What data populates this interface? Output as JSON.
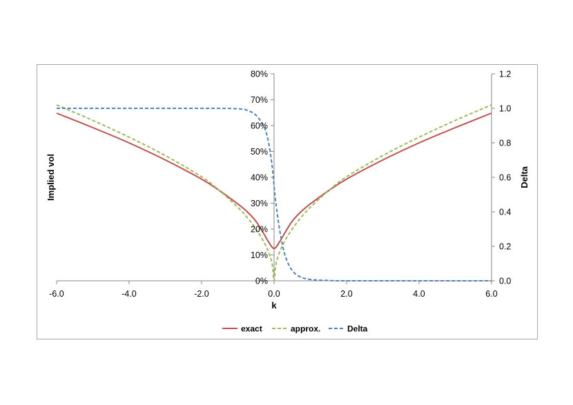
{
  "chart_data": {
    "type": "line",
    "xlabel": "k",
    "ylabel": "Implied vol",
    "y2label": "Delta",
    "xlim": [
      -6,
      6
    ],
    "ylim": [
      0,
      0.8
    ],
    "y2lim": [
      0,
      1.2
    ],
    "x_ticks": [
      "-6.0",
      "-4.0",
      "-2.0",
      "0.0",
      "2.0",
      "4.0",
      "6.0"
    ],
    "y_ticks": [
      "0%",
      "10%",
      "20%",
      "30%",
      "40%",
      "50%",
      "60%",
      "70%",
      "80%"
    ],
    "y2_ticks": [
      "0.0",
      "0.2",
      "0.4",
      "0.6",
      "0.8",
      "1.0",
      "1.2"
    ],
    "legend_position": "bottom",
    "grid": false,
    "series": [
      {
        "name": "exact",
        "axis": "left",
        "color": "#c0504d",
        "dash": "solid",
        "x": [
          -6,
          -5,
          -4,
          -3,
          -2,
          -1.5,
          -1,
          -0.75,
          -0.5,
          -0.3,
          -0.15,
          0,
          0.15,
          0.3,
          0.5,
          0.75,
          1,
          1.5,
          2,
          3,
          4,
          5,
          6
        ],
        "y": [
          0.648,
          0.592,
          0.533,
          0.467,
          0.393,
          0.348,
          0.297,
          0.268,
          0.23,
          0.186,
          0.15,
          0.125,
          0.15,
          0.186,
          0.23,
          0.268,
          0.297,
          0.348,
          0.393,
          0.467,
          0.533,
          0.592,
          0.648
        ]
      },
      {
        "name": "approx.",
        "axis": "left",
        "color": "#9bbb59",
        "dash": "dashed",
        "x": [
          -6,
          -5,
          -4,
          -3,
          -2,
          -1.5,
          -1,
          -0.75,
          -0.5,
          -0.3,
          -0.15,
          -0.05,
          0,
          0.05,
          0.15,
          0.3,
          0.5,
          0.75,
          1,
          1.5,
          2,
          3,
          4,
          5,
          6
        ],
        "y": [
          0.68,
          0.62,
          0.555,
          0.484,
          0.402,
          0.348,
          0.284,
          0.246,
          0.2,
          0.155,
          0.11,
          0.063,
          0.0,
          0.063,
          0.11,
          0.155,
          0.2,
          0.246,
          0.284,
          0.348,
          0.402,
          0.484,
          0.555,
          0.62,
          0.68
        ]
      },
      {
        "name": "Delta",
        "axis": "right",
        "color": "#4f81bd",
        "dash": "dashed",
        "x": [
          -6,
          -2,
          -1,
          -0.7,
          -0.5,
          -0.35,
          -0.25,
          -0.15,
          -0.05,
          0,
          0.05,
          0.15,
          0.25,
          0.35,
          0.5,
          0.7,
          1,
          1.5,
          2,
          4,
          6
        ],
        "y": [
          1.0,
          1.0,
          0.997,
          0.985,
          0.96,
          0.92,
          0.88,
          0.8,
          0.66,
          0.55,
          0.45,
          0.3,
          0.19,
          0.12,
          0.06,
          0.025,
          0.008,
          0.002,
          0.0,
          0.0,
          0.0
        ]
      }
    ]
  }
}
